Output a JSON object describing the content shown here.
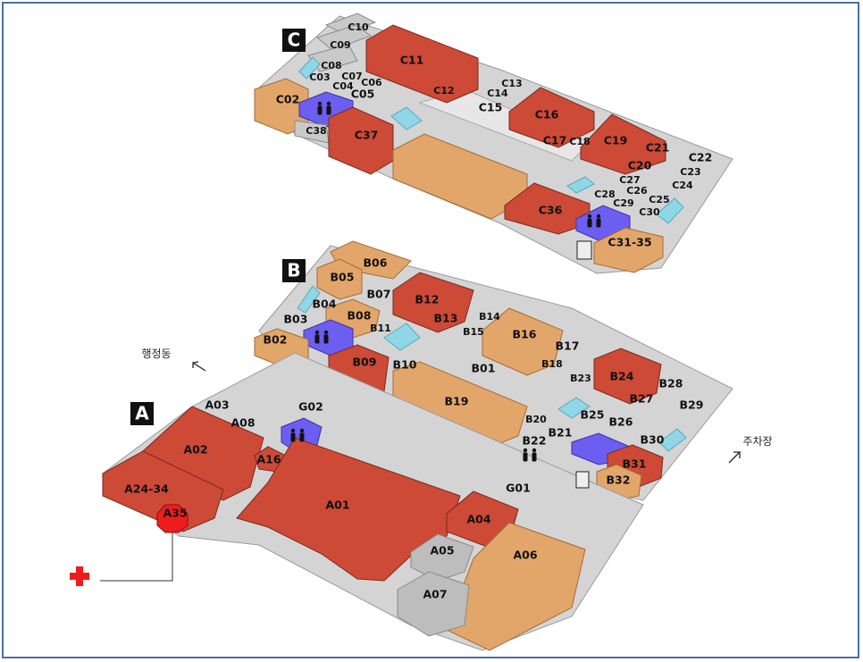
{
  "colors": {
    "red": "#cc4a36",
    "orange": "#e3a66a",
    "gray": "#c9c9c9",
    "blue": "#6b5ef0",
    "cyan": "#8fd6e6",
    "first_aid": "#ee1c1c"
  },
  "zones": [
    {
      "id": "zone-a",
      "label": "A"
    },
    {
      "id": "zone-b",
      "label": "B"
    },
    {
      "id": "zone-c",
      "label": "C"
    }
  ],
  "directions": {
    "admin": "행정동",
    "parking": "주차장"
  },
  "rooms": [
    {
      "id": "C10",
      "label": "C10",
      "color": "gray"
    },
    {
      "id": "C09",
      "label": "C09",
      "color": "gray"
    },
    {
      "id": "C08",
      "label": "C08",
      "color": "gray"
    },
    {
      "id": "C07",
      "label": "C07",
      "color": "gray"
    },
    {
      "id": "C06",
      "label": "C06",
      "color": "gray"
    },
    {
      "id": "C03",
      "label": "C03",
      "color": "gray"
    },
    {
      "id": "C04",
      "label": "C04",
      "color": "gray"
    },
    {
      "id": "C05",
      "label": "C05",
      "color": "gray"
    },
    {
      "id": "C02",
      "label": "C02",
      "color": "orange"
    },
    {
      "id": "C11",
      "label": "C11",
      "color": "red"
    },
    {
      "id": "C12",
      "label": "C12",
      "color": "gray"
    },
    {
      "id": "C38",
      "label": "C38",
      "color": "gray"
    },
    {
      "id": "C37",
      "label": "C37",
      "color": "red"
    },
    {
      "id": "C13",
      "label": "C13",
      "color": "gray"
    },
    {
      "id": "C14",
      "label": "C14",
      "color": "gray"
    },
    {
      "id": "C15",
      "label": "C15",
      "color": "gray"
    },
    {
      "id": "C16",
      "label": "C16",
      "color": "red"
    },
    {
      "id": "C17",
      "label": "C17",
      "color": "gray"
    },
    {
      "id": "C18",
      "label": "C18",
      "color": "gray"
    },
    {
      "id": "C19",
      "label": "C19",
      "color": "red"
    },
    {
      "id": "C21",
      "label": "C21",
      "color": "gray"
    },
    {
      "id": "C20",
      "label": "C20",
      "color": "gray"
    },
    {
      "id": "C22",
      "label": "C22",
      "color": "gray"
    },
    {
      "id": "C23",
      "label": "C23",
      "color": "gray"
    },
    {
      "id": "C24",
      "label": "C24",
      "color": "gray"
    },
    {
      "id": "C27",
      "label": "C27",
      "color": "gray"
    },
    {
      "id": "C28",
      "label": "C28",
      "color": "gray"
    },
    {
      "id": "C26",
      "label": "C26",
      "color": "gray"
    },
    {
      "id": "C29",
      "label": "C29",
      "color": "gray"
    },
    {
      "id": "C25",
      "label": "C25",
      "color": "gray"
    },
    {
      "id": "C30",
      "label": "C30",
      "color": "gray"
    },
    {
      "id": "C36",
      "label": "C36",
      "color": "red"
    },
    {
      "id": "C31-35",
      "label": "C31-35",
      "color": "orange"
    },
    {
      "id": "B06",
      "label": "B06",
      "color": "orange"
    },
    {
      "id": "B05",
      "label": "B05",
      "color": "orange"
    },
    {
      "id": "B07",
      "label": "B07",
      "color": "gray"
    },
    {
      "id": "B12",
      "label": "B12",
      "color": "red"
    },
    {
      "id": "B04",
      "label": "B04",
      "color": "gray"
    },
    {
      "id": "B08",
      "label": "B08",
      "color": "orange"
    },
    {
      "id": "B03",
      "label": "B03",
      "color": "gray"
    },
    {
      "id": "B13",
      "label": "B13",
      "color": "gray"
    },
    {
      "id": "B14",
      "label": "B14",
      "color": "gray"
    },
    {
      "id": "B11",
      "label": "B11",
      "color": "gray"
    },
    {
      "id": "B15",
      "label": "B15",
      "color": "gray"
    },
    {
      "id": "B16",
      "label": "B16",
      "color": "orange"
    },
    {
      "id": "B02",
      "label": "B02",
      "color": "orange"
    },
    {
      "id": "B17",
      "label": "B17",
      "color": "gray"
    },
    {
      "id": "B09",
      "label": "B09",
      "color": "red"
    },
    {
      "id": "B10",
      "label": "B10",
      "color": "gray"
    },
    {
      "id": "B01",
      "label": "B01",
      "color": "gray"
    },
    {
      "id": "B18",
      "label": "B18",
      "color": "gray"
    },
    {
      "id": "B23",
      "label": "B23",
      "color": "gray"
    },
    {
      "id": "B24",
      "label": "B24",
      "color": "red"
    },
    {
      "id": "B28",
      "label": "B28",
      "color": "gray"
    },
    {
      "id": "B27",
      "label": "B27",
      "color": "gray"
    },
    {
      "id": "B19",
      "label": "B19",
      "color": "orange"
    },
    {
      "id": "B29",
      "label": "B29",
      "color": "gray"
    },
    {
      "id": "B25",
      "label": "B25",
      "color": "gray"
    },
    {
      "id": "B20",
      "label": "B20",
      "color": "gray"
    },
    {
      "id": "B26",
      "label": "B26",
      "color": "gray"
    },
    {
      "id": "B21",
      "label": "B21",
      "color": "gray"
    },
    {
      "id": "B30",
      "label": "B30",
      "color": "gray"
    },
    {
      "id": "B22",
      "label": "B22",
      "color": "gray"
    },
    {
      "id": "B31",
      "label": "B31",
      "color": "red"
    },
    {
      "id": "B32",
      "label": "B32",
      "color": "orange"
    },
    {
      "id": "A03",
      "label": "A03",
      "color": "gray"
    },
    {
      "id": "G02",
      "label": "G02",
      "color": "gray"
    },
    {
      "id": "A08",
      "label": "A08",
      "color": "gray"
    },
    {
      "id": "A02",
      "label": "A02",
      "color": "red"
    },
    {
      "id": "A16",
      "label": "A16",
      "color": "red"
    },
    {
      "id": "A24-34",
      "label": "A24-34",
      "color": "red"
    },
    {
      "id": "A35",
      "label": "A35",
      "color": "red"
    },
    {
      "id": "A01",
      "label": "A01",
      "color": "red"
    },
    {
      "id": "G01",
      "label": "G01",
      "color": "gray"
    },
    {
      "id": "A04",
      "label": "A04",
      "color": "red"
    },
    {
      "id": "A05",
      "label": "A05",
      "color": "gray"
    },
    {
      "id": "A06",
      "label": "A06",
      "color": "orange"
    },
    {
      "id": "A07",
      "label": "A07",
      "color": "gray"
    }
  ]
}
